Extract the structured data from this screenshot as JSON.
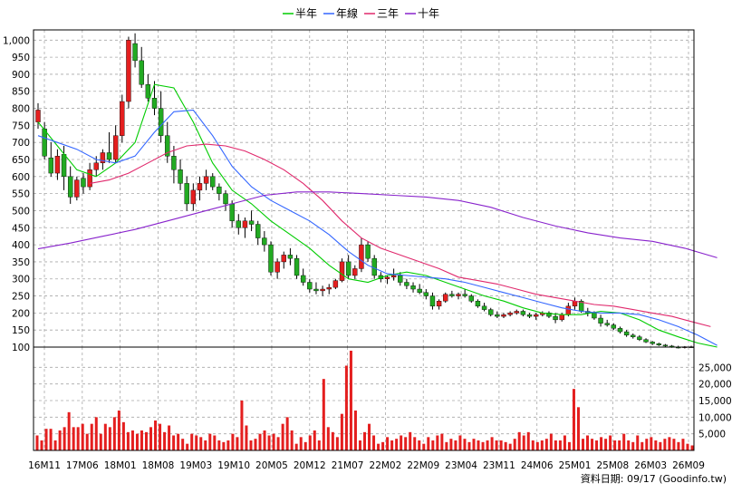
{
  "legend": [
    {
      "label": "半年",
      "color": "#00cc00"
    },
    {
      "label": "年線",
      "color": "#3366ff"
    },
    {
      "label": "三年",
      "color": "#e0286c"
    },
    {
      "label": "十年",
      "color": "#8822cc"
    }
  ],
  "footer": "資料日期: 09/17 (Goodinfo.tw)",
  "colors": {
    "up_candle": "#e41f1f",
    "down_candle": "#22aa22",
    "volume_bar": "#e41f1f",
    "grid": "#a8a8a8",
    "frame": "#000000"
  },
  "chart_data": [
    {
      "type": "candlestick",
      "title": "",
      "ylim": [
        100,
        1030
      ],
      "y_ticks": [
        "1,000",
        "950",
        "900",
        "850",
        "800",
        "750",
        "700",
        "650",
        "600",
        "550",
        "500",
        "450",
        "400",
        "350",
        "300",
        "250",
        "200",
        "150",
        "100"
      ],
      "x_ticks": [
        "16M11",
        "17M06",
        "18M01",
        "18M08",
        "19M03",
        "19M10",
        "20M05",
        "20M12",
        "21M07",
        "22M02",
        "22M09",
        "23M04",
        "23M11",
        "24M06",
        "25M01",
        "25M08",
        "26M03",
        "26M09"
      ],
      "ohlc_monthly_from_16M11": [
        [
          760,
          815,
          740,
          795
        ],
        [
          740,
          760,
          650,
          660
        ],
        [
          655,
          700,
          600,
          610
        ],
        [
          610,
          680,
          590,
          660
        ],
        [
          665,
          690,
          560,
          600
        ],
        [
          600,
          630,
          520,
          540
        ],
        [
          540,
          600,
          530,
          590
        ],
        [
          595,
          610,
          550,
          570
        ],
        [
          570,
          640,
          560,
          620
        ],
        [
          620,
          660,
          600,
          640
        ],
        [
          640,
          680,
          620,
          670
        ],
        [
          670,
          730,
          640,
          650
        ],
        [
          650,
          750,
          640,
          720
        ],
        [
          720,
          840,
          700,
          820
        ],
        [
          820,
          1010,
          800,
          1000
        ],
        [
          990,
          1020,
          920,
          940
        ],
        [
          940,
          980,
          860,
          870
        ],
        [
          870,
          900,
          820,
          830
        ],
        [
          830,
          880,
          780,
          800
        ],
        [
          800,
          850,
          700,
          720
        ],
        [
          720,
          760,
          640,
          660
        ],
        [
          660,
          690,
          580,
          620
        ],
        [
          620,
          650,
          560,
          580
        ],
        [
          580,
          600,
          500,
          520
        ],
        [
          520,
          580,
          500,
          560
        ],
        [
          560,
          600,
          530,
          580
        ],
        [
          580,
          620,
          560,
          600
        ],
        [
          600,
          610,
          560,
          570
        ],
        [
          570,
          580,
          530,
          550
        ],
        [
          550,
          560,
          500,
          520
        ],
        [
          520,
          530,
          450,
          470
        ],
        [
          470,
          490,
          430,
          450
        ],
        [
          450,
          480,
          420,
          470
        ],
        [
          470,
          500,
          440,
          460
        ],
        [
          460,
          470,
          400,
          420
        ],
        [
          420,
          440,
          380,
          400
        ],
        [
          400,
          410,
          310,
          320
        ],
        [
          320,
          360,
          300,
          350
        ],
        [
          350,
          380,
          330,
          370
        ],
        [
          370,
          390,
          340,
          360
        ],
        [
          360,
          370,
          300,
          310
        ],
        [
          310,
          330,
          280,
          290
        ],
        [
          290,
          300,
          260,
          270
        ],
        [
          270,
          290,
          255,
          265
        ],
        [
          265,
          280,
          250,
          270
        ],
        [
          270,
          285,
          255,
          275
        ],
        [
          275,
          300,
          270,
          295
        ],
        [
          295,
          360,
          290,
          350
        ],
        [
          350,
          370,
          300,
          310
        ],
        [
          310,
          340,
          300,
          330
        ],
        [
          330,
          420,
          320,
          400
        ],
        [
          400,
          410,
          350,
          360
        ],
        [
          360,
          370,
          300,
          310
        ],
        [
          310,
          320,
          290,
          300
        ],
        [
          300,
          310,
          285,
          305
        ],
        [
          305,
          330,
          295,
          310
        ],
        [
          310,
          320,
          280,
          290
        ],
        [
          290,
          300,
          270,
          280
        ],
        [
          280,
          290,
          260,
          270
        ],
        [
          270,
          285,
          255,
          260
        ],
        [
          260,
          270,
          240,
          250
        ],
        [
          250,
          260,
          210,
          220
        ],
        [
          220,
          240,
          210,
          235
        ],
        [
          235,
          260,
          230,
          255
        ],
        [
          255,
          265,
          245,
          250
        ],
        [
          250,
          260,
          240,
          255
        ],
        [
          255,
          270,
          245,
          250
        ],
        [
          250,
          255,
          230,
          235
        ],
        [
          235,
          240,
          215,
          220
        ],
        [
          220,
          230,
          205,
          210
        ],
        [
          210,
          215,
          190,
          195
        ],
        [
          195,
          205,
          185,
          190
        ],
        [
          190,
          200,
          185,
          195
        ],
        [
          195,
          205,
          190,
          200
        ],
        [
          200,
          210,
          195,
          205
        ],
        [
          205,
          210,
          190,
          195
        ],
        [
          195,
          200,
          185,
          190
        ],
        [
          190,
          200,
          180,
          195
        ],
        [
          195,
          205,
          190,
          200
        ],
        [
          200,
          205,
          185,
          190
        ],
        [
          190,
          200,
          170,
          180
        ],
        [
          180,
          200,
          175,
          195
        ],
        [
          195,
          230,
          190,
          220
        ],
        [
          220,
          245,
          210,
          235
        ],
        [
          235,
          240,
          200,
          205
        ],
        [
          205,
          215,
          190,
          200
        ],
        [
          200,
          205,
          180,
          185
        ],
        [
          185,
          195,
          160,
          170
        ],
        [
          170,
          180,
          160,
          165
        ],
        [
          165,
          170,
          150,
          155
        ],
        [
          155,
          160,
          140,
          145
        ],
        [
          145,
          150,
          130,
          135
        ],
        [
          135,
          140,
          125,
          130
        ],
        [
          130,
          135,
          118,
          122
        ],
        [
          122,
          126,
          112,
          115
        ],
        [
          115,
          118,
          106,
          110
        ],
        [
          110,
          113,
          103,
          106
        ],
        [
          106,
          109,
          100,
          103
        ],
        [
          103,
          106,
          98,
          100
        ],
        [
          100,
          104,
          96,
          99
        ],
        [
          99,
          103,
          96,
          101
        ],
        [
          101,
          104,
          98,
          100
        ]
      ],
      "ma_half_year": [
        [
          0,
          760
        ],
        [
          3,
          690
        ],
        [
          6,
          620
        ],
        [
          9,
          600
        ],
        [
          12,
          640
        ],
        [
          15,
          700
        ],
        [
          18,
          870
        ],
        [
          21,
          860
        ],
        [
          24,
          760
        ],
        [
          27,
          640
        ],
        [
          30,
          560
        ],
        [
          33,
          520
        ],
        [
          36,
          470
        ],
        [
          39,
          430
        ],
        [
          42,
          390
        ],
        [
          45,
          340
        ],
        [
          48,
          300
        ],
        [
          51,
          290
        ],
        [
          54,
          310
        ],
        [
          57,
          320
        ],
        [
          60,
          310
        ],
        [
          63,
          290
        ],
        [
          66,
          270
        ],
        [
          69,
          250
        ],
        [
          72,
          235
        ],
        [
          75,
          215
        ],
        [
          78,
          200
        ],
        [
          81,
          195
        ],
        [
          84,
          195
        ],
        [
          87,
          205
        ],
        [
          90,
          200
        ],
        [
          93,
          180
        ],
        [
          96,
          150
        ],
        [
          99,
          130
        ],
        [
          102,
          112
        ],
        [
          105,
          100
        ]
      ],
      "ma_year": [
        [
          0,
          720
        ],
        [
          3,
          700
        ],
        [
          6,
          680
        ],
        [
          9,
          650
        ],
        [
          12,
          640
        ],
        [
          15,
          660
        ],
        [
          18,
          730
        ],
        [
          21,
          790
        ],
        [
          24,
          795
        ],
        [
          27,
          720
        ],
        [
          30,
          630
        ],
        [
          33,
          570
        ],
        [
          36,
          530
        ],
        [
          39,
          500
        ],
        [
          42,
          470
        ],
        [
          45,
          430
        ],
        [
          48,
          380
        ],
        [
          51,
          340
        ],
        [
          54,
          315
        ],
        [
          57,
          310
        ],
        [
          60,
          305
        ],
        [
          63,
          300
        ],
        [
          66,
          290
        ],
        [
          69,
          275
        ],
        [
          72,
          260
        ],
        [
          75,
          245
        ],
        [
          78,
          230
        ],
        [
          81,
          215
        ],
        [
          84,
          205
        ],
        [
          87,
          200
        ],
        [
          90,
          200
        ],
        [
          93,
          195
        ],
        [
          96,
          180
        ],
        [
          99,
          160
        ],
        [
          102,
          135
        ],
        [
          105,
          105
        ]
      ],
      "ma_3year": [
        [
          8,
          580
        ],
        [
          11,
          590
        ],
        [
          14,
          610
        ],
        [
          17,
          640
        ],
        [
          20,
          670
        ],
        [
          23,
          690
        ],
        [
          26,
          695
        ],
        [
          29,
          690
        ],
        [
          32,
          675
        ],
        [
          35,
          650
        ],
        [
          38,
          620
        ],
        [
          41,
          580
        ],
        [
          44,
          530
        ],
        [
          47,
          470
        ],
        [
          50,
          420
        ],
        [
          53,
          390
        ],
        [
          56,
          370
        ],
        [
          59,
          350
        ],
        [
          62,
          330
        ],
        [
          65,
          305
        ],
        [
          68,
          295
        ],
        [
          71,
          285
        ],
        [
          74,
          270
        ],
        [
          77,
          255
        ],
        [
          80,
          245
        ],
        [
          83,
          235
        ],
        [
          86,
          225
        ],
        [
          89,
          220
        ],
        [
          92,
          210
        ],
        [
          95,
          200
        ],
        [
          98,
          190
        ],
        [
          101,
          175
        ],
        [
          104,
          160
        ]
      ],
      "ma_10year": [
        [
          0,
          388
        ],
        [
          5,
          405
        ],
        [
          10,
          425
        ],
        [
          15,
          445
        ],
        [
          20,
          470
        ],
        [
          25,
          495
        ],
        [
          30,
          520
        ],
        [
          35,
          545
        ],
        [
          40,
          555
        ],
        [
          45,
          555
        ],
        [
          50,
          550
        ],
        [
          55,
          545
        ],
        [
          60,
          540
        ],
        [
          65,
          530
        ],
        [
          70,
          510
        ],
        [
          75,
          480
        ],
        [
          80,
          455
        ],
        [
          85,
          435
        ],
        [
          90,
          420
        ],
        [
          95,
          410
        ],
        [
          100,
          390
        ],
        [
          105,
          362
        ]
      ]
    },
    {
      "type": "bar",
      "title": "",
      "ylabel": "",
      "ylim": [
        0,
        30000
      ],
      "y_ticks": [
        "25,000",
        "20,000",
        "15,000",
        "10,000",
        "5,000"
      ],
      "values": [
        4500,
        3000,
        6500,
        6500,
        3000,
        6000,
        7000,
        11500,
        7000,
        7000,
        8000,
        5000,
        8000,
        10000,
        5000,
        8000,
        7000,
        10000,
        12000,
        8500,
        5500,
        6000,
        5000,
        6000,
        5500,
        7000,
        9000,
        8000,
        5500,
        7500,
        4500,
        5000,
        3500,
        2000,
        5000,
        4500,
        4000,
        3000,
        5000,
        4500,
        3000,
        2500,
        3000,
        5000,
        4000,
        15000,
        7500,
        3000,
        3500,
        5000,
        6000,
        4500,
        5000,
        4000,
        8000,
        10000,
        6000,
        2000,
        4000,
        2500,
        4500,
        6000,
        3000,
        21500,
        7000,
        5500,
        4000,
        11000,
        25500,
        30000,
        12000,
        3000,
        5500,
        8000,
        4500,
        2000,
        2500,
        4000,
        3000,
        3500,
        4500,
        4000,
        5500,
        4000,
        3000,
        2000,
        4000,
        3000,
        4500,
        5000,
        2500,
        3500,
        3000,
        4500,
        3500,
        2500,
        3500,
        3000,
        2500,
        3000,
        4000,
        3000,
        3000,
        2500,
        2000,
        3500,
        5500,
        4500,
        5500,
        3000,
        2500,
        3000,
        3500,
        5000,
        3000,
        3000,
        4500,
        2500,
        18500,
        13000,
        3500,
        4500,
        3500,
        3000,
        4000,
        3500,
        4500,
        3000,
        3000,
        5000,
        3000,
        2500,
        4500,
        2500,
        3500,
        4000,
        3000,
        2500,
        3500,
        4000,
        3500,
        2500,
        3500,
        2000,
        1500
      ]
    }
  ]
}
